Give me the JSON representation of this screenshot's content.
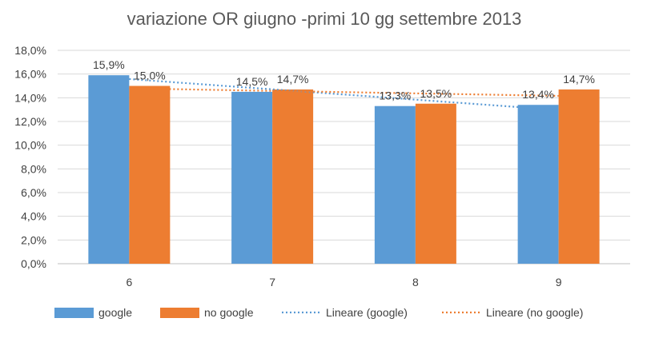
{
  "chart_data": {
    "type": "bar",
    "title": "variazione OR giugno -primi 10 gg settembre 2013",
    "categories": [
      "6",
      "7",
      "8",
      "9"
    ],
    "series": [
      {
        "name": "google",
        "values": [
          15.9,
          14.5,
          13.3,
          13.4
        ],
        "labels": [
          "15,9%",
          "14,5%",
          "13,3%",
          "13,4%"
        ],
        "color": "#5B9BD5"
      },
      {
        "name": "no google",
        "values": [
          15.0,
          14.7,
          13.5,
          14.7
        ],
        "labels": [
          "15,0%",
          "14,7%",
          "13,5%",
          "14,7%"
        ],
        "color": "#ED7D31"
      }
    ],
    "trendlines": [
      {
        "name": "Lineare (google)",
        "series": "google",
        "type": "linear",
        "style": "dotted",
        "color": "#5B9BD5"
      },
      {
        "name": "Lineare (no google)",
        "series": "no google",
        "type": "linear",
        "style": "dotted",
        "color": "#ED7D31"
      }
    ],
    "ylim": [
      0,
      18
    ],
    "yticks": [
      "0,0%",
      "2,0%",
      "4,0%",
      "6,0%",
      "8,0%",
      "10,0%",
      "12,0%",
      "14,0%",
      "16,0%",
      "18,0%"
    ],
    "grid": true,
    "legend_position": "bottom"
  }
}
